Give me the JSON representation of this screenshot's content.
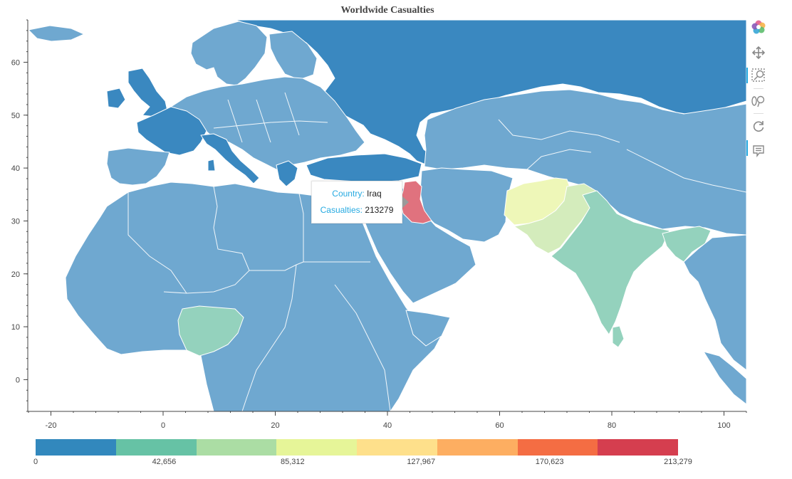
{
  "title": "Worldwide Casualties",
  "chart_data": {
    "type": "choropleth",
    "title": "Worldwide Casualties",
    "xlabel": "",
    "ylabel": "",
    "xlim": [
      -24,
      104
    ],
    "ylim": [
      -6,
      68
    ],
    "x_ticks": [
      -20,
      0,
      20,
      40,
      60,
      80,
      100
    ],
    "y_ticks": [
      0,
      10,
      20,
      30,
      40,
      50,
      60
    ],
    "legend": "colorbar-bottom",
    "colorbar": {
      "colors": [
        "#3288bd",
        "#66c2a5",
        "#abdda4",
        "#e6f598",
        "#fee08b",
        "#fdae61",
        "#f46d43",
        "#d53e4f"
      ],
      "tick_labels": [
        "0",
        "42,656",
        "85,312",
        "127,967",
        "170,623",
        "213,279"
      ],
      "tick_values": [
        0,
        42656,
        85312,
        127967,
        170623,
        213279
      ]
    },
    "highlighted": [
      {
        "country": "Iraq",
        "casualties": 213279,
        "color": "#e0727e"
      },
      {
        "country": "Afghanistan",
        "color": "#eef7b8"
      },
      {
        "country": "Pakistan",
        "color": "#d4ecbc"
      },
      {
        "country": "India",
        "color": "#94d2bd"
      },
      {
        "country": "Nigeria",
        "color": "#94d2bd"
      },
      {
        "country": "Bangladesh",
        "color": "#94d2bd"
      }
    ],
    "base_colors": {
      "low": "#6fa8d0",
      "dark": "#3a88c0",
      "ocean": "#ffffff",
      "border": "#ffffff"
    }
  },
  "tooltip": {
    "country_key": "Country:",
    "country_value": "Iraq",
    "casualties_key": "Casualties:",
    "casualties_value": "213279"
  },
  "toolbar": [
    "bokeh-logo-icon",
    "pan-icon",
    "box-zoom-icon",
    "wheel-zoom-icon",
    "reset-icon",
    "hover-icon"
  ]
}
